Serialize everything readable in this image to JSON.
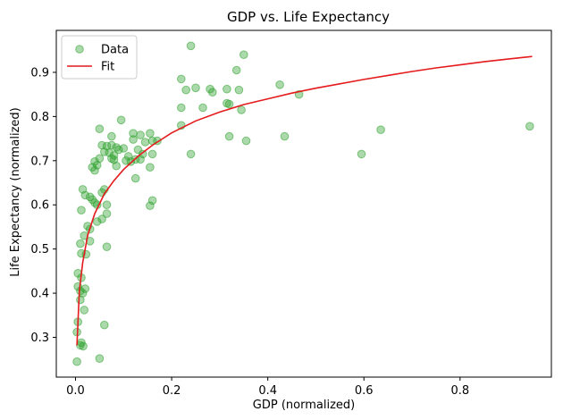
{
  "chart_data": {
    "type": "scatter",
    "title": "GDP vs. Life Expectancy",
    "xlabel": "GDP (normalized)",
    "ylabel": "Life Expectancy (normalized)",
    "xlim": [
      -0.04,
      0.99
    ],
    "ylim": [
      0.21,
      0.995
    ],
    "xticks": [
      0.0,
      0.2,
      0.4,
      0.6,
      0.8
    ],
    "xtick_labels": [
      "0.0",
      "0.2",
      "0.4",
      "0.6",
      "0.8"
    ],
    "yticks": [
      0.3,
      0.4,
      0.5,
      0.6,
      0.7,
      0.8,
      0.9
    ],
    "ytick_labels": [
      "0.3",
      "0.4",
      "0.5",
      "0.6",
      "0.7",
      "0.8",
      "0.9"
    ],
    "grid": false,
    "legend_position": "top-left",
    "series": [
      {
        "name": "Data",
        "kind": "scatter",
        "color": "#2ca02c",
        "points": [
          [
            0.24,
            0.96
          ],
          [
            0.35,
            0.94
          ],
          [
            0.335,
            0.905
          ],
          [
            0.22,
            0.885
          ],
          [
            0.425,
            0.872
          ],
          [
            0.25,
            0.865
          ],
          [
            0.23,
            0.86
          ],
          [
            0.28,
            0.862
          ],
          [
            0.285,
            0.855
          ],
          [
            0.315,
            0.862
          ],
          [
            0.34,
            0.86
          ],
          [
            0.465,
            0.85
          ],
          [
            0.315,
            0.83
          ],
          [
            0.32,
            0.828
          ],
          [
            0.22,
            0.82
          ],
          [
            0.265,
            0.82
          ],
          [
            0.345,
            0.815
          ],
          [
            0.22,
            0.78
          ],
          [
            0.635,
            0.77
          ],
          [
            0.945,
            0.778
          ],
          [
            0.32,
            0.755
          ],
          [
            0.435,
            0.755
          ],
          [
            0.355,
            0.745
          ],
          [
            0.595,
            0.715
          ],
          [
            0.24,
            0.715
          ],
          [
            0.095,
            0.792
          ],
          [
            0.05,
            0.772
          ],
          [
            0.12,
            0.762
          ],
          [
            0.155,
            0.762
          ],
          [
            0.135,
            0.758
          ],
          [
            0.075,
            0.755
          ],
          [
            0.12,
            0.748
          ],
          [
            0.17,
            0.745
          ],
          [
            0.145,
            0.742
          ],
          [
            0.16,
            0.745
          ],
          [
            0.055,
            0.735
          ],
          [
            0.065,
            0.733
          ],
          [
            0.075,
            0.735
          ],
          [
            0.085,
            0.73
          ],
          [
            0.09,
            0.725
          ],
          [
            0.1,
            0.728
          ],
          [
            0.13,
            0.725
          ],
          [
            0.06,
            0.72
          ],
          [
            0.07,
            0.718
          ],
          [
            0.08,
            0.712
          ],
          [
            0.11,
            0.71
          ],
          [
            0.14,
            0.715
          ],
          [
            0.16,
            0.715
          ],
          [
            0.075,
            0.705
          ],
          [
            0.05,
            0.705
          ],
          [
            0.08,
            0.702
          ],
          [
            0.105,
            0.7
          ],
          [
            0.115,
            0.698
          ],
          [
            0.125,
            0.703
          ],
          [
            0.135,
            0.703
          ],
          [
            0.04,
            0.698
          ],
          [
            0.045,
            0.69
          ],
          [
            0.035,
            0.685
          ],
          [
            0.04,
            0.678
          ],
          [
            0.085,
            0.688
          ],
          [
            0.155,
            0.685
          ],
          [
            0.125,
            0.66
          ],
          [
            0.06,
            0.635
          ],
          [
            0.055,
            0.628
          ],
          [
            0.03,
            0.618
          ],
          [
            0.02,
            0.622
          ],
          [
            0.035,
            0.612
          ],
          [
            0.015,
            0.635
          ],
          [
            0.04,
            0.605
          ],
          [
            0.045,
            0.6
          ],
          [
            0.065,
            0.6
          ],
          [
            0.16,
            0.61
          ],
          [
            0.155,
            0.598
          ],
          [
            0.012,
            0.588
          ],
          [
            0.065,
            0.58
          ],
          [
            0.055,
            0.568
          ],
          [
            0.045,
            0.562
          ],
          [
            0.025,
            0.552
          ],
          [
            0.03,
            0.545
          ],
          [
            0.018,
            0.53
          ],
          [
            0.03,
            0.518
          ],
          [
            0.01,
            0.512
          ],
          [
            0.065,
            0.505
          ],
          [
            0.022,
            0.488
          ],
          [
            0.012,
            0.49
          ],
          [
            0.005,
            0.445
          ],
          [
            0.012,
            0.435
          ],
          [
            0.005,
            0.415
          ],
          [
            0.02,
            0.41
          ],
          [
            0.01,
            0.405
          ],
          [
            0.015,
            0.4
          ],
          [
            0.01,
            0.385
          ],
          [
            0.018,
            0.362
          ],
          [
            0.005,
            0.335
          ],
          [
            0.06,
            0.328
          ],
          [
            0.003,
            0.312
          ],
          [
            0.012,
            0.288
          ],
          [
            0.01,
            0.282
          ],
          [
            0.016,
            0.28
          ],
          [
            0.05,
            0.252
          ],
          [
            0.003,
            0.245
          ]
        ]
      },
      {
        "name": "Fit",
        "kind": "line",
        "color": "#e41a1c",
        "points": [
          [
            0.003,
            0.282
          ],
          [
            0.008,
            0.405
          ],
          [
            0.015,
            0.47
          ],
          [
            0.025,
            0.53
          ],
          [
            0.04,
            0.58
          ],
          [
            0.06,
            0.625
          ],
          [
            0.08,
            0.655
          ],
          [
            0.1,
            0.68
          ],
          [
            0.13,
            0.71
          ],
          [
            0.16,
            0.735
          ],
          [
            0.2,
            0.763
          ],
          [
            0.25,
            0.79
          ],
          [
            0.3,
            0.81
          ],
          [
            0.35,
            0.827
          ],
          [
            0.4,
            0.84
          ],
          [
            0.45,
            0.853
          ],
          [
            0.5,
            0.864
          ],
          [
            0.55,
            0.874
          ],
          [
            0.6,
            0.884
          ],
          [
            0.65,
            0.893
          ],
          [
            0.7,
            0.902
          ],
          [
            0.75,
            0.91
          ],
          [
            0.8,
            0.917
          ],
          [
            0.85,
            0.924
          ],
          [
            0.9,
            0.93
          ],
          [
            0.95,
            0.936
          ]
        ]
      }
    ]
  }
}
